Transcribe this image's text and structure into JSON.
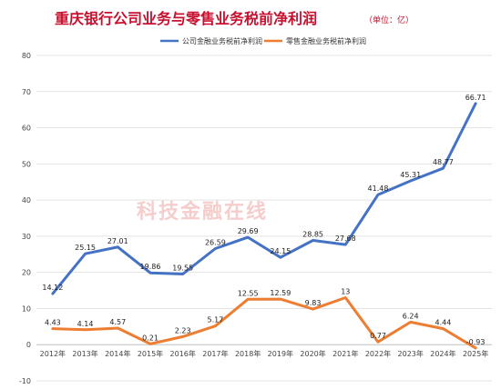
{
  "chart_data": {
    "type": "line",
    "title": "重庆银行公司业务与零售业务税前净利润",
    "unit_note": "（单位：亿）",
    "watermark": "科技金融在线",
    "categories": [
      "2012年",
      "2013年",
      "2014年",
      "2015年",
      "2016年",
      "2017年",
      "2018年",
      "2019年",
      "2020年",
      "2021年",
      "2022年",
      "2023年",
      "2024年",
      "2025年"
    ],
    "series": [
      {
        "name": "公司金融业务税前净利润",
        "color": "#4472c4",
        "values": [
          14.12,
          25.15,
          27.01,
          19.86,
          19.55,
          26.59,
          29.69,
          24.15,
          28.85,
          27.68,
          41.48,
          45.31,
          48.77,
          66.71
        ],
        "labels": [
          "14.12",
          "25.15",
          "27.01",
          "19.86",
          "19.55",
          "26.59",
          "29.69",
          "24.15",
          "28.85",
          "27.68",
          "41.48",
          "45.31",
          "48.77",
          "66.71"
        ]
      },
      {
        "name": "零售金融业务税前净利润",
        "color": "#ed7d31",
        "values": [
          4.43,
          4.14,
          4.57,
          0.21,
          2.23,
          5.17,
          12.55,
          12.59,
          9.83,
          13,
          0.77,
          6.24,
          4.44,
          -0.93
        ],
        "labels": [
          "4.43",
          "4.14",
          "4.57",
          "0.21",
          "2.23",
          "5.17",
          "12.55",
          "12.59",
          "9.83",
          "13",
          "0.77",
          "6.24",
          "4.44",
          "-0.93"
        ]
      }
    ],
    "ylim": [
      -10,
      80
    ],
    "yticks": [
      -10,
      0,
      10,
      20,
      30,
      40,
      50,
      60,
      70,
      80
    ],
    "grid": true,
    "legend": "top-center"
  }
}
